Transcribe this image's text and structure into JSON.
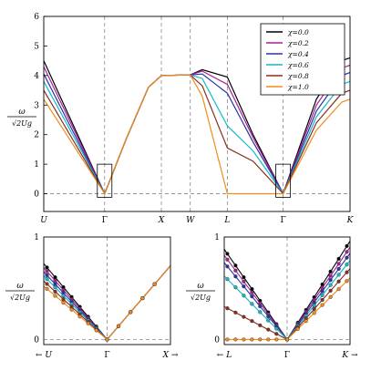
{
  "chart_data": [
    {
      "type": "line",
      "panel": "main",
      "ylabel_num": "ω",
      "ylabel_den": "√2Ug",
      "ylim": [
        -0.6,
        6
      ],
      "yticks": [
        "0",
        "1",
        "2",
        "3",
        "4",
        "5",
        "6"
      ],
      "xticks": [
        {
          "label": "U",
          "at": 0,
          "italic": true
        },
        {
          "label": "Γ",
          "at": 1.92,
          "italic": false
        },
        {
          "label": "X",
          "at": 3.71,
          "italic": true
        },
        {
          "label": "W",
          "at": 4.62,
          "italic": true
        },
        {
          "label": "L",
          "at": 5.79,
          "italic": true
        },
        {
          "label": "Γ",
          "at": 7.55,
          "italic": false
        },
        {
          "label": "K",
          "at": 9.66,
          "italic": true
        }
      ],
      "xlim": [
        0,
        9.66
      ],
      "legend_placement": "top-right",
      "series": [
        {
          "name": "χ=0.0",
          "color": "#000000",
          "pts": [
            [
              0,
              4.5
            ],
            [
              1.92,
              0
            ],
            [
              2.6,
              1.85
            ],
            [
              3.3,
              3.6
            ],
            [
              3.71,
              4.0
            ],
            [
              4.62,
              4.02
            ],
            [
              5.0,
              4.2
            ],
            [
              5.79,
              3.95
            ],
            [
              6.6,
              2.0
            ],
            [
              7.55,
              0
            ],
            [
              8.6,
              3.2
            ],
            [
              9.4,
              4.5
            ],
            [
              9.66,
              4.6
            ]
          ]
        },
        {
          "name": "χ=0.2",
          "color": "#a8208f",
          "pts": [
            [
              0,
              4.3
            ],
            [
              1.92,
              0
            ],
            [
              2.6,
              1.85
            ],
            [
              3.3,
              3.6
            ],
            [
              3.71,
              4.0
            ],
            [
              4.62,
              4.02
            ],
            [
              5.0,
              4.15
            ],
            [
              5.79,
              3.7
            ],
            [
              6.6,
              1.9
            ],
            [
              7.55,
              0
            ],
            [
              8.6,
              3.0
            ],
            [
              9.4,
              4.25
            ],
            [
              9.66,
              4.35
            ]
          ]
        },
        {
          "name": "χ=0.4",
          "color": "#2a33a8",
          "pts": [
            [
              0,
              4.05
            ],
            [
              1.92,
              0
            ],
            [
              2.6,
              1.85
            ],
            [
              3.3,
              3.6
            ],
            [
              3.71,
              4.0
            ],
            [
              4.62,
              4.02
            ],
            [
              5.0,
              4.05
            ],
            [
              5.79,
              3.4
            ],
            [
              6.6,
              1.75
            ],
            [
              7.55,
              0
            ],
            [
              8.6,
              2.8
            ],
            [
              9.4,
              4.0
            ],
            [
              9.66,
              4.1
            ]
          ]
        },
        {
          "name": "χ=0.6",
          "color": "#17b8c4",
          "pts": [
            [
              0,
              3.8
            ],
            [
              1.92,
              0
            ],
            [
              2.6,
              1.85
            ],
            [
              3.3,
              3.6
            ],
            [
              3.71,
              4.0
            ],
            [
              4.62,
              4.02
            ],
            [
              5.0,
              3.9
            ],
            [
              5.79,
              2.3
            ],
            [
              6.6,
              1.45
            ],
            [
              7.55,
              0
            ],
            [
              8.6,
              2.6
            ],
            [
              9.4,
              3.7
            ],
            [
              9.66,
              3.8
            ]
          ]
        },
        {
          "name": "χ=0.8",
          "color": "#8c2c22",
          "pts": [
            [
              0,
              3.5
            ],
            [
              1.92,
              0
            ],
            [
              2.6,
              1.85
            ],
            [
              3.3,
              3.6
            ],
            [
              3.71,
              4.0
            ],
            [
              4.62,
              4.02
            ],
            [
              5.0,
              3.65
            ],
            [
              5.79,
              1.55
            ],
            [
              6.6,
              1.1
            ],
            [
              7.55,
              0
            ],
            [
              8.6,
              2.4
            ],
            [
              9.4,
              3.4
            ],
            [
              9.66,
              3.5
            ]
          ]
        },
        {
          "name": "χ=1.0",
          "color": "#f08c1c",
          "pts": [
            [
              0,
              3.2
            ],
            [
              1.92,
              0
            ],
            [
              2.6,
              1.85
            ],
            [
              3.3,
              3.6
            ],
            [
              3.71,
              4.0
            ],
            [
              4.62,
              4.02
            ],
            [
              5.0,
              3.3
            ],
            [
              5.79,
              0
            ],
            [
              6.6,
              0
            ],
            [
              7.55,
              0
            ],
            [
              8.6,
              2.15
            ],
            [
              9.4,
              3.1
            ],
            [
              9.66,
              3.2
            ]
          ]
        }
      ]
    },
    {
      "type": "line",
      "panel": "zoom-left",
      "ylabel_num": "ω",
      "ylabel_den": "√2Ug",
      "ylim": [
        -0.05,
        1
      ],
      "yticks": [
        "0",
        "1"
      ],
      "xticks": [
        {
          "label": "← U",
          "at": 0,
          "italic": true
        },
        {
          "label": "Γ",
          "at": 1,
          "italic": false
        },
        {
          "label": "X →",
          "at": 2,
          "italic": true
        }
      ],
      "markers_x": [
        0.05,
        0.18,
        0.31,
        0.44,
        0.57,
        0.7,
        0.83,
        1.0,
        1.18,
        1.37,
        1.56,
        1.75
      ],
      "series_slopes": [
        {
          "color": "#000000",
          "left": 0.74,
          "right": 0.72
        },
        {
          "color": "#a8208f",
          "left": 0.7,
          "right": 0.72
        },
        {
          "color": "#2a33a8",
          "left": 0.66,
          "right": 0.72
        },
        {
          "color": "#17b8c4",
          "left": 0.62,
          "right": 0.72
        },
        {
          "color": "#8c2c22",
          "left": 0.57,
          "right": 0.72
        },
        {
          "color": "#f08c1c",
          "left": 0.52,
          "right": 0.72
        }
      ]
    },
    {
      "type": "line",
      "panel": "zoom-right",
      "ylabel_num": "ω",
      "ylabel_den": "√2Ug",
      "ylim": [
        -0.05,
        1
      ],
      "yticks": [
        "0",
        "1"
      ],
      "xticks": [
        {
          "label": "← L",
          "at": 0,
          "italic": true
        },
        {
          "label": "Γ",
          "at": 1,
          "italic": false
        },
        {
          "label": "K →",
          "at": 2,
          "italic": true
        }
      ],
      "markers_x": [
        0.05,
        0.18,
        0.31,
        0.44,
        0.57,
        0.7,
        0.83,
        1.0,
        1.17,
        1.3,
        1.43,
        1.56,
        1.69,
        1.82,
        1.95
      ],
      "series_slopes": [
        {
          "color": "#000000",
          "left": 0.88,
          "right": 0.96
        },
        {
          "color": "#a8208f",
          "left": 0.82,
          "right": 0.9
        },
        {
          "color": "#2a33a8",
          "left": 0.75,
          "right": 0.84
        },
        {
          "color": "#17b8c4",
          "left": 0.62,
          "right": 0.77
        },
        {
          "color": "#8c2c22",
          "left": 0.32,
          "right": 0.69
        },
        {
          "color": "#f08c1c",
          "left": 0.0,
          "right": 0.6
        }
      ]
    }
  ]
}
